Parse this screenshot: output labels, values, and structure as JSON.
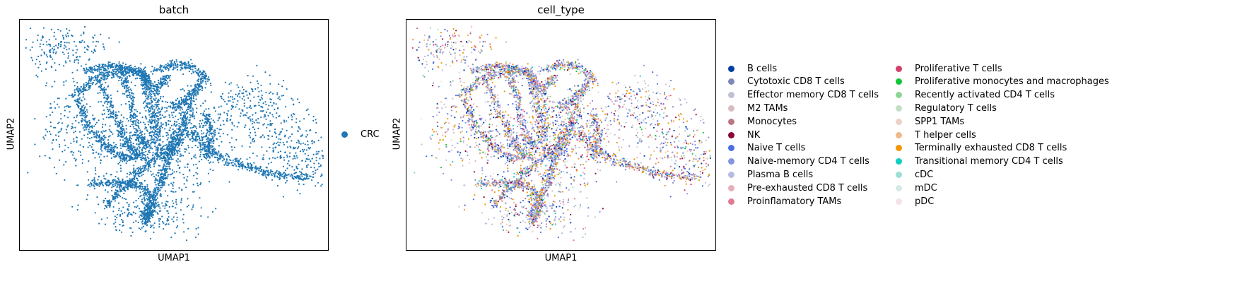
{
  "chart_data": [
    {
      "type": "scatter",
      "title": "batch",
      "xlabel": "UMAP1",
      "ylabel": "UMAP2",
      "grid": false,
      "ticks": false,
      "legend_placement": "right",
      "legend": [
        {
          "name": "CRC",
          "color": "#1f77b4"
        }
      ]
    },
    {
      "type": "scatter",
      "title": "cell_type",
      "xlabel": "UMAP1",
      "ylabel": "UMAP2",
      "grid": false,
      "ticks": false,
      "legend_placement": "right",
      "legend": [
        {
          "name": "B cells",
          "color": "#023fa5"
        },
        {
          "name": "Cytotoxic CD8 T cells",
          "color": "#7d87b9"
        },
        {
          "name": "Effector memory CD8 T cells",
          "color": "#bec1d4"
        },
        {
          "name": "M2 TAMs",
          "color": "#d6bcc0"
        },
        {
          "name": "Monocytes",
          "color": "#bb7784"
        },
        {
          "name": "NK",
          "color": "#8e063b"
        },
        {
          "name": "Naive T cells",
          "color": "#4a6fe3"
        },
        {
          "name": "Naive-memory CD4 T cells",
          "color": "#8595e1"
        },
        {
          "name": "Plasma B cells",
          "color": "#b5bbe3"
        },
        {
          "name": "Pre-exhausted CD8 T cells",
          "color": "#e6afb9"
        },
        {
          "name": "Proinflamatory TAMs",
          "color": "#e07b91"
        },
        {
          "name": "Proliferative T cells",
          "color": "#d33f6a"
        },
        {
          "name": "Proliferative monocytes and macrophages",
          "color": "#11c638"
        },
        {
          "name": "Recently activated CD4 T cells",
          "color": "#8dd593"
        },
        {
          "name": "Regulatory T cells",
          "color": "#c6dec7"
        },
        {
          "name": "SPP1 TAMs",
          "color": "#ead3c6"
        },
        {
          "name": "T helper cells",
          "color": "#f0b98d"
        },
        {
          "name": "Terminally exhausted CD8 T cells",
          "color": "#ef9708"
        },
        {
          "name": "Transitional memory CD4 T cells",
          "color": "#0fcfc0"
        },
        {
          "name": "cDC",
          "color": "#9cded6"
        },
        {
          "name": "mDC",
          "color": "#d5eae7"
        },
        {
          "name": "pDC",
          "color": "#f3e1eb"
        }
      ]
    }
  ]
}
